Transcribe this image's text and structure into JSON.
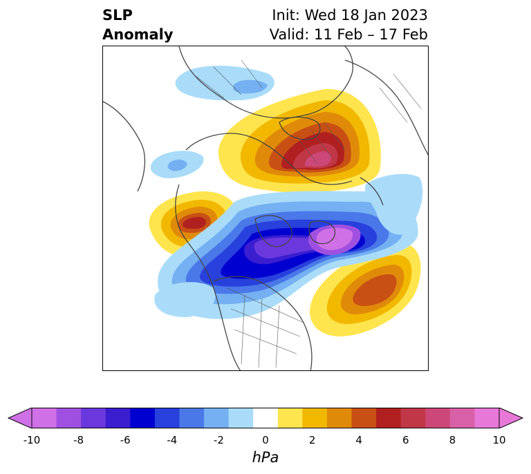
{
  "header": {
    "title_line1": "SLP",
    "title_line2": "Anomaly",
    "init_text": "Init: Wed 18 Jan 2023",
    "valid_text": "Valid: 11 Feb – 17 Feb"
  },
  "colorbar": {
    "units": "hPa",
    "ticks": [
      "-10",
      "-8",
      "-6",
      "-4",
      "-2",
      "0",
      "2",
      "4",
      "6",
      "8",
      "10"
    ],
    "levels": [
      -10,
      -9,
      -8,
      -7,
      -6,
      -5,
      -4,
      -3,
      -2,
      -1,
      1,
      2,
      3,
      4,
      5,
      6,
      7,
      8,
      9,
      10
    ],
    "colors": [
      "#d070e6",
      "#a050e0",
      "#6a38dc",
      "#3a1ed0",
      "#0000d0",
      "#2840dc",
      "#4a78e8",
      "#74b0f2",
      "#aadcfa",
      "#ffffff",
      "#fee54e",
      "#f2b800",
      "#e08a0a",
      "#c85014",
      "#b02020",
      "#c03848",
      "#cc4878",
      "#d860a8",
      "#e878d8"
    ],
    "extend_low_color": "#d070e6",
    "extend_high_color": "#e878d8"
  },
  "map": {
    "projection": "polar stereographic",
    "coastline_color": "#444444"
  }
}
